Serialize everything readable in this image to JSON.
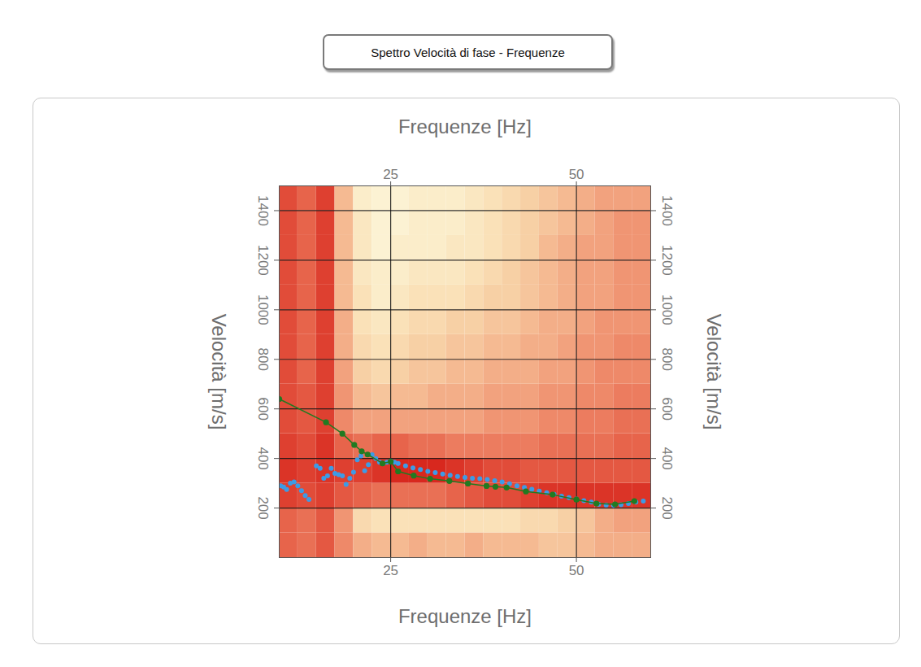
{
  "chart_data": {
    "type": "heatmap",
    "title": "Spettro Velocità di fase - Frequenze",
    "x_label": "Frequenze [Hz]",
    "y_label": "Velocità [m/s]",
    "xlim": [
      10,
      60
    ],
    "ylim": [
      0,
      1500
    ],
    "xticks": [
      25,
      50
    ],
    "yticks": [
      200,
      400,
      600,
      800,
      1000,
      1200,
      1400
    ],
    "grid": true,
    "heatmap": {
      "x_edges": [
        10,
        12.5,
        15,
        17.5,
        20,
        22.5,
        25,
        27.5,
        30,
        32.5,
        35,
        37.5,
        40,
        42.5,
        45,
        47.5,
        50,
        52.5,
        55,
        57.5,
        60
      ],
      "y_edges": [
        0,
        100,
        200,
        300,
        400,
        500,
        600,
        700,
        800,
        900,
        1000,
        1100,
        1200,
        1300,
        1400,
        1500
      ],
      "zlim": [
        0,
        1
      ],
      "values": [
        [
          0.75,
          0.7,
          0.8,
          0.6,
          0.45,
          0.4,
          0.4,
          0.45,
          0.4,
          0.4,
          0.45,
          0.4,
          0.4,
          0.4,
          0.35,
          0.35,
          0.4,
          0.45,
          0.45,
          0.45
        ],
        [
          0.75,
          0.7,
          0.8,
          0.55,
          0.25,
          0.2,
          0.2,
          0.2,
          0.2,
          0.2,
          0.2,
          0.2,
          0.2,
          0.25,
          0.25,
          0.3,
          0.35,
          0.45,
          0.5,
          0.5
        ],
        [
          0.9,
          0.85,
          0.9,
          0.8,
          0.75,
          0.7,
          0.7,
          0.7,
          0.7,
          0.75,
          0.8,
          0.85,
          0.85,
          0.9,
          0.95,
          0.95,
          0.95,
          0.95,
          0.95,
          0.95
        ],
        [
          0.95,
          0.9,
          0.95,
          0.9,
          0.9,
          0.95,
          1,
          1,
          1,
          0.95,
          0.9,
          0.85,
          0.85,
          0.8,
          0.8,
          0.8,
          0.8,
          0.8,
          0.8,
          0.8
        ],
        [
          0.9,
          0.85,
          0.95,
          0.75,
          0.7,
          0.75,
          0.75,
          0.7,
          0.7,
          0.65,
          0.65,
          0.65,
          0.65,
          0.65,
          0.7,
          0.7,
          0.7,
          0.7,
          0.75,
          0.75
        ],
        [
          0.85,
          0.8,
          0.9,
          0.6,
          0.5,
          0.5,
          0.5,
          0.5,
          0.5,
          0.5,
          0.5,
          0.55,
          0.55,
          0.55,
          0.6,
          0.6,
          0.65,
          0.65,
          0.7,
          0.7
        ],
        [
          0.85,
          0.8,
          0.9,
          0.55,
          0.4,
          0.35,
          0.4,
          0.4,
          0.45,
          0.45,
          0.45,
          0.5,
          0.5,
          0.5,
          0.55,
          0.55,
          0.6,
          0.6,
          0.65,
          0.65
        ],
        [
          0.85,
          0.75,
          0.9,
          0.5,
          0.3,
          0.25,
          0.3,
          0.35,
          0.35,
          0.4,
          0.4,
          0.45,
          0.45,
          0.45,
          0.5,
          0.5,
          0.55,
          0.6,
          0.6,
          0.6
        ],
        [
          0.85,
          0.75,
          0.9,
          0.45,
          0.25,
          0.2,
          0.25,
          0.3,
          0.3,
          0.35,
          0.35,
          0.4,
          0.4,
          0.45,
          0.45,
          0.5,
          0.55,
          0.55,
          0.6,
          0.6
        ],
        [
          0.85,
          0.75,
          0.9,
          0.45,
          0.2,
          0.15,
          0.2,
          0.25,
          0.25,
          0.3,
          0.3,
          0.35,
          0.35,
          0.4,
          0.45,
          0.45,
          0.5,
          0.55,
          0.55,
          0.55
        ],
        [
          0.85,
          0.75,
          0.9,
          0.4,
          0.2,
          0.1,
          0.15,
          0.2,
          0.2,
          0.2,
          0.25,
          0.3,
          0.3,
          0.35,
          0.4,
          0.45,
          0.5,
          0.5,
          0.55,
          0.55
        ],
        [
          0.85,
          0.75,
          0.9,
          0.4,
          0.15,
          0.1,
          0.1,
          0.15,
          0.15,
          0.15,
          0.2,
          0.25,
          0.3,
          0.35,
          0.4,
          0.45,
          0.5,
          0.5,
          0.55,
          0.55
        ],
        [
          0.85,
          0.75,
          0.9,
          0.4,
          0.15,
          0.05,
          0.1,
          0.1,
          0.1,
          0.15,
          0.15,
          0.2,
          0.25,
          0.3,
          0.4,
          0.45,
          0.5,
          0.5,
          0.55,
          0.55
        ],
        [
          0.85,
          0.75,
          0.9,
          0.4,
          0.15,
          0.05,
          0.05,
          0.1,
          0.1,
          0.1,
          0.15,
          0.2,
          0.25,
          0.3,
          0.35,
          0.4,
          0.45,
          0.5,
          0.55,
          0.55
        ],
        [
          0.85,
          0.75,
          0.9,
          0.4,
          0.1,
          0.05,
          0.05,
          0.1,
          0.1,
          0.1,
          0.15,
          0.2,
          0.25,
          0.3,
          0.35,
          0.4,
          0.45,
          0.5,
          0.5,
          0.5
        ]
      ]
    },
    "series": [
      {
        "type": "scatter",
        "color": "#3d9be6",
        "marker": "circle",
        "x": [
          10.2,
          10.6,
          11,
          11.5,
          12,
          12.5,
          13,
          13.5,
          14,
          15,
          15.5,
          16,
          16.5,
          17,
          17.5,
          18,
          18.5,
          19,
          19.5,
          20,
          20.5,
          21,
          21.5,
          22,
          22.5,
          23,
          23.5,
          24,
          24.5,
          25,
          25.5,
          26,
          27,
          28,
          29,
          30,
          31,
          32,
          33,
          34,
          35,
          36,
          37,
          38,
          39,
          40,
          41,
          42,
          43,
          44,
          45,
          46,
          47,
          48,
          49,
          50,
          51,
          52,
          53,
          54,
          55,
          56,
          57,
          58,
          59
        ],
        "values": [
          290,
          285,
          275,
          300,
          305,
          290,
          270,
          250,
          235,
          370,
          360,
          320,
          330,
          360,
          340,
          335,
          330,
          295,
          320,
          345,
          395,
          410,
          350,
          375,
          415,
          400,
          385,
          380,
          385,
          390,
          385,
          380,
          370,
          362,
          355,
          348,
          343,
          337,
          332,
          327,
          323,
          320,
          318,
          315,
          310,
          305,
          298,
          290,
          283,
          276,
          268,
          262,
          255,
          248,
          242,
          236,
          230,
          224,
          215,
          212,
          211,
          213,
          218,
          224,
          228
        ]
      },
      {
        "type": "line",
        "color": "#217a21",
        "marker": "circle",
        "x": [
          10,
          16.3,
          18.5,
          20.1,
          21.1,
          21.9,
          23.9,
          25,
          26,
          28.1,
          30.3,
          32.9,
          35.4,
          37.9,
          39.1,
          40.6,
          43.2,
          46.8,
          50,
          52.7,
          55.2,
          57.8
        ],
        "values": [
          640,
          546,
          500,
          455,
          429,
          416,
          380,
          387,
          348,
          331,
          318,
          309,
          299,
          289,
          286,
          283,
          267,
          254,
          234,
          218,
          215,
          228
        ]
      }
    ]
  }
}
